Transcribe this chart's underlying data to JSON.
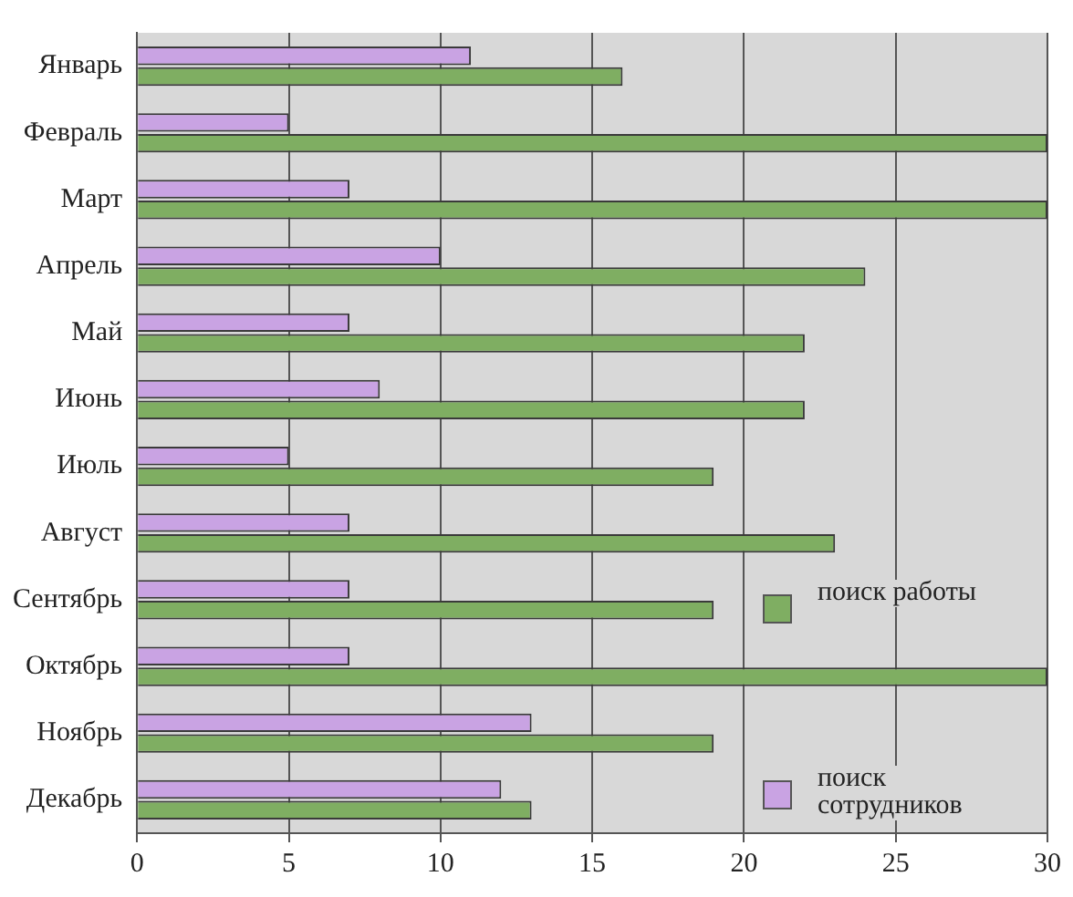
{
  "chart_data": {
    "type": "bar",
    "orientation": "horizontal",
    "categories": [
      "Январь",
      "Февраль",
      "Март",
      "Апрель",
      "Май",
      "Июнь",
      "Июль",
      "Август",
      "Сентябрь",
      "Октябрь",
      "Ноябрь",
      "Декабрь"
    ],
    "series": [
      {
        "name": "поиск сотрудников",
        "color": "#c9a3e3",
        "values": [
          11,
          5,
          7,
          10,
          7,
          8,
          5,
          7,
          7,
          7,
          13,
          12
        ]
      },
      {
        "name": "поиск работы",
        "color": "#7fae62",
        "values": [
          16,
          30,
          30,
          24,
          22,
          22,
          19,
          23,
          19,
          30,
          19,
          13
        ]
      }
    ],
    "xlim": [
      0,
      30
    ],
    "xticks": [
      0,
      5,
      10,
      15,
      20,
      25,
      30
    ],
    "grid": "x",
    "legend": "right"
  }
}
